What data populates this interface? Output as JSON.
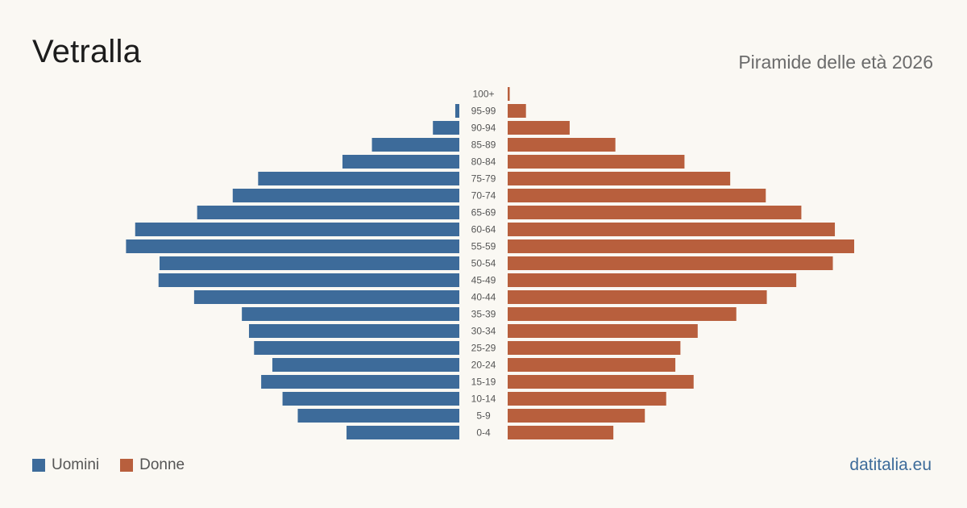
{
  "title": "Vetralla",
  "subtitle": "Piramide delle età 2026",
  "site": "datitalia.eu",
  "legend": [
    {
      "label": "Uomini",
      "color": "#3d6b9a"
    },
    {
      "label": "Donne",
      "color": "#b85f3d"
    }
  ],
  "chart_data": {
    "type": "bar",
    "orientation": "horizontal-pyramid",
    "categories": [
      "100+",
      "95-99",
      "90-94",
      "85-89",
      "80-84",
      "75-79",
      "70-74",
      "65-69",
      "60-64",
      "55-59",
      "50-54",
      "45-49",
      "40-44",
      "35-39",
      "30-34",
      "25-29",
      "20-24",
      "15-19",
      "10-14",
      "5-9",
      "0-4"
    ],
    "series": [
      {
        "name": "Uomini",
        "color": "#3d6b9a",
        "values": [
          0,
          4,
          26,
          86,
          115,
          198,
          223,
          258,
          319,
          328,
          295,
          296,
          261,
          214,
          207,
          202,
          184,
          195,
          174,
          159,
          111
        ]
      },
      {
        "name": "Donne",
        "color": "#b85f3d",
        "values": [
          2,
          18,
          61,
          106,
          174,
          219,
          254,
          289,
          322,
          341,
          320,
          284,
          255,
          225,
          187,
          170,
          165,
          183,
          156,
          135,
          104
        ]
      }
    ]
  }
}
